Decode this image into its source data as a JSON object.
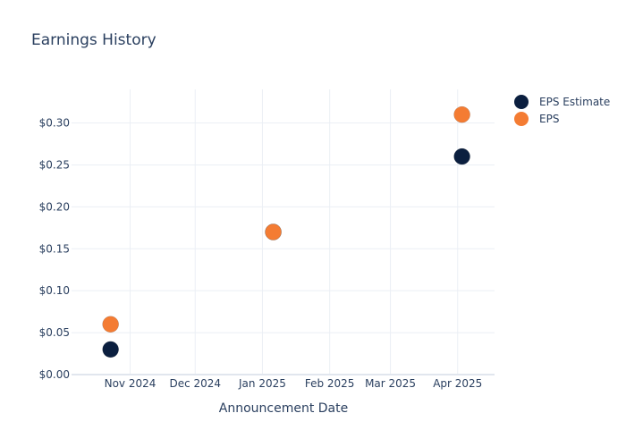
{
  "chart_data": {
    "type": "scatter",
    "title": "Earnings History",
    "xlabel": "Announcement Date",
    "ylabel": "",
    "x_ticks": [
      "Nov 2024",
      "Dec 2024",
      "Jan 2025",
      "Feb 2025",
      "Mar 2025",
      "Apr 2025"
    ],
    "x_tick_dates": [
      "2024-11-01",
      "2024-12-01",
      "2025-01-01",
      "2025-02-01",
      "2025-03-01",
      "2025-04-01"
    ],
    "xlim": [
      "2024-10-05",
      "2025-04-18"
    ],
    "y_ticks": [
      "$0.00",
      "$0.05",
      "$0.10",
      "$0.15",
      "$0.20",
      "$0.25",
      "$0.30"
    ],
    "y_tick_values": [
      0,
      0.05,
      0.1,
      0.15,
      0.2,
      0.25,
      0.3
    ],
    "ylim": [
      0,
      0.34
    ],
    "grid": true,
    "legend_position": "top-right",
    "series": [
      {
        "name": "EPS Estimate",
        "color": "#0b1f3f",
        "points": [
          {
            "x": "2024-10-23",
            "y": 0.03
          },
          {
            "x": "2025-01-06",
            "y": 0.17
          },
          {
            "x": "2025-04-03",
            "y": 0.26
          }
        ]
      },
      {
        "name": "EPS",
        "color": "#f47c33",
        "points": [
          {
            "x": "2024-10-23",
            "y": 0.06
          },
          {
            "x": "2025-01-06",
            "y": 0.17
          },
          {
            "x": "2025-04-03",
            "y": 0.31
          }
        ]
      }
    ]
  }
}
